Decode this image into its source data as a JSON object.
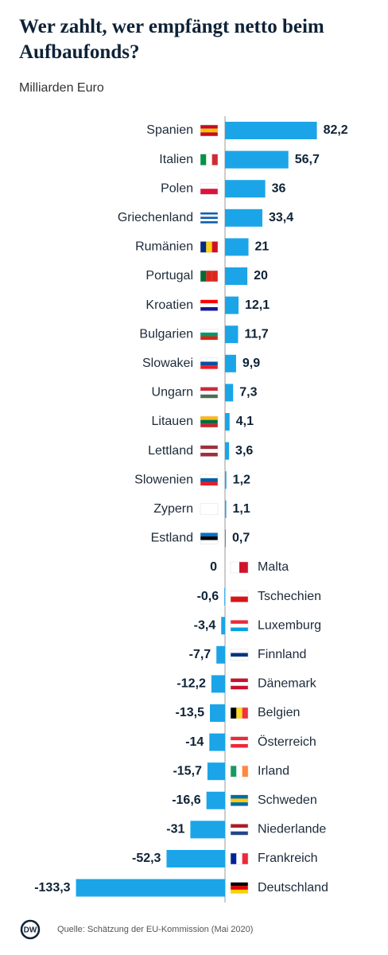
{
  "chart_data": {
    "type": "bar",
    "orientation": "horizontal",
    "title": "Wer zahlt, wer empfängt netto beim Aufbaufonds?",
    "subtitle": "Milliarden Euro",
    "source": "Quelle: Schätzung der EU-Kommission (Mai 2020)",
    "logo": "DW",
    "color": "#1ba5e8",
    "categories": [
      "Spanien",
      "Italien",
      "Polen",
      "Griechenland",
      "Rumänien",
      "Portugal",
      "Kroatien",
      "Bulgarien",
      "Slowakei",
      "Ungarn",
      "Litauen",
      "Lettland",
      "Slowenien",
      "Zypern",
      "Estland",
      "Malta",
      "Tschechien",
      "Luxemburg",
      "Finnland",
      "Dänemark",
      "Belgien",
      "Österreich",
      "Irland",
      "Schweden",
      "Niederlande",
      "Frankreich",
      "Deutschland"
    ],
    "values": [
      82.2,
      56.7,
      36,
      33.4,
      21,
      20,
      12.1,
      11.7,
      9.9,
      7.3,
      4.1,
      3.6,
      1.2,
      1.1,
      0.7,
      0,
      -0.6,
      -3.4,
      -7.7,
      -12.2,
      -13.5,
      -14,
      -15.7,
      -16.6,
      -31,
      -52.3,
      -133.3
    ],
    "value_labels": [
      "82,2",
      "56,7",
      "36",
      "33,4",
      "21",
      "20",
      "12,1",
      "11,7",
      "9,9",
      "7,3",
      "4,1",
      "3,6",
      "1,2",
      "1,1",
      "0,7",
      "0",
      "-0,6",
      "-3,4",
      "-7,7",
      "-12,2",
      "-13,5",
      "-14",
      "-15,7",
      "-16,6",
      "-31",
      "-52,3",
      "-133,3"
    ]
  }
}
